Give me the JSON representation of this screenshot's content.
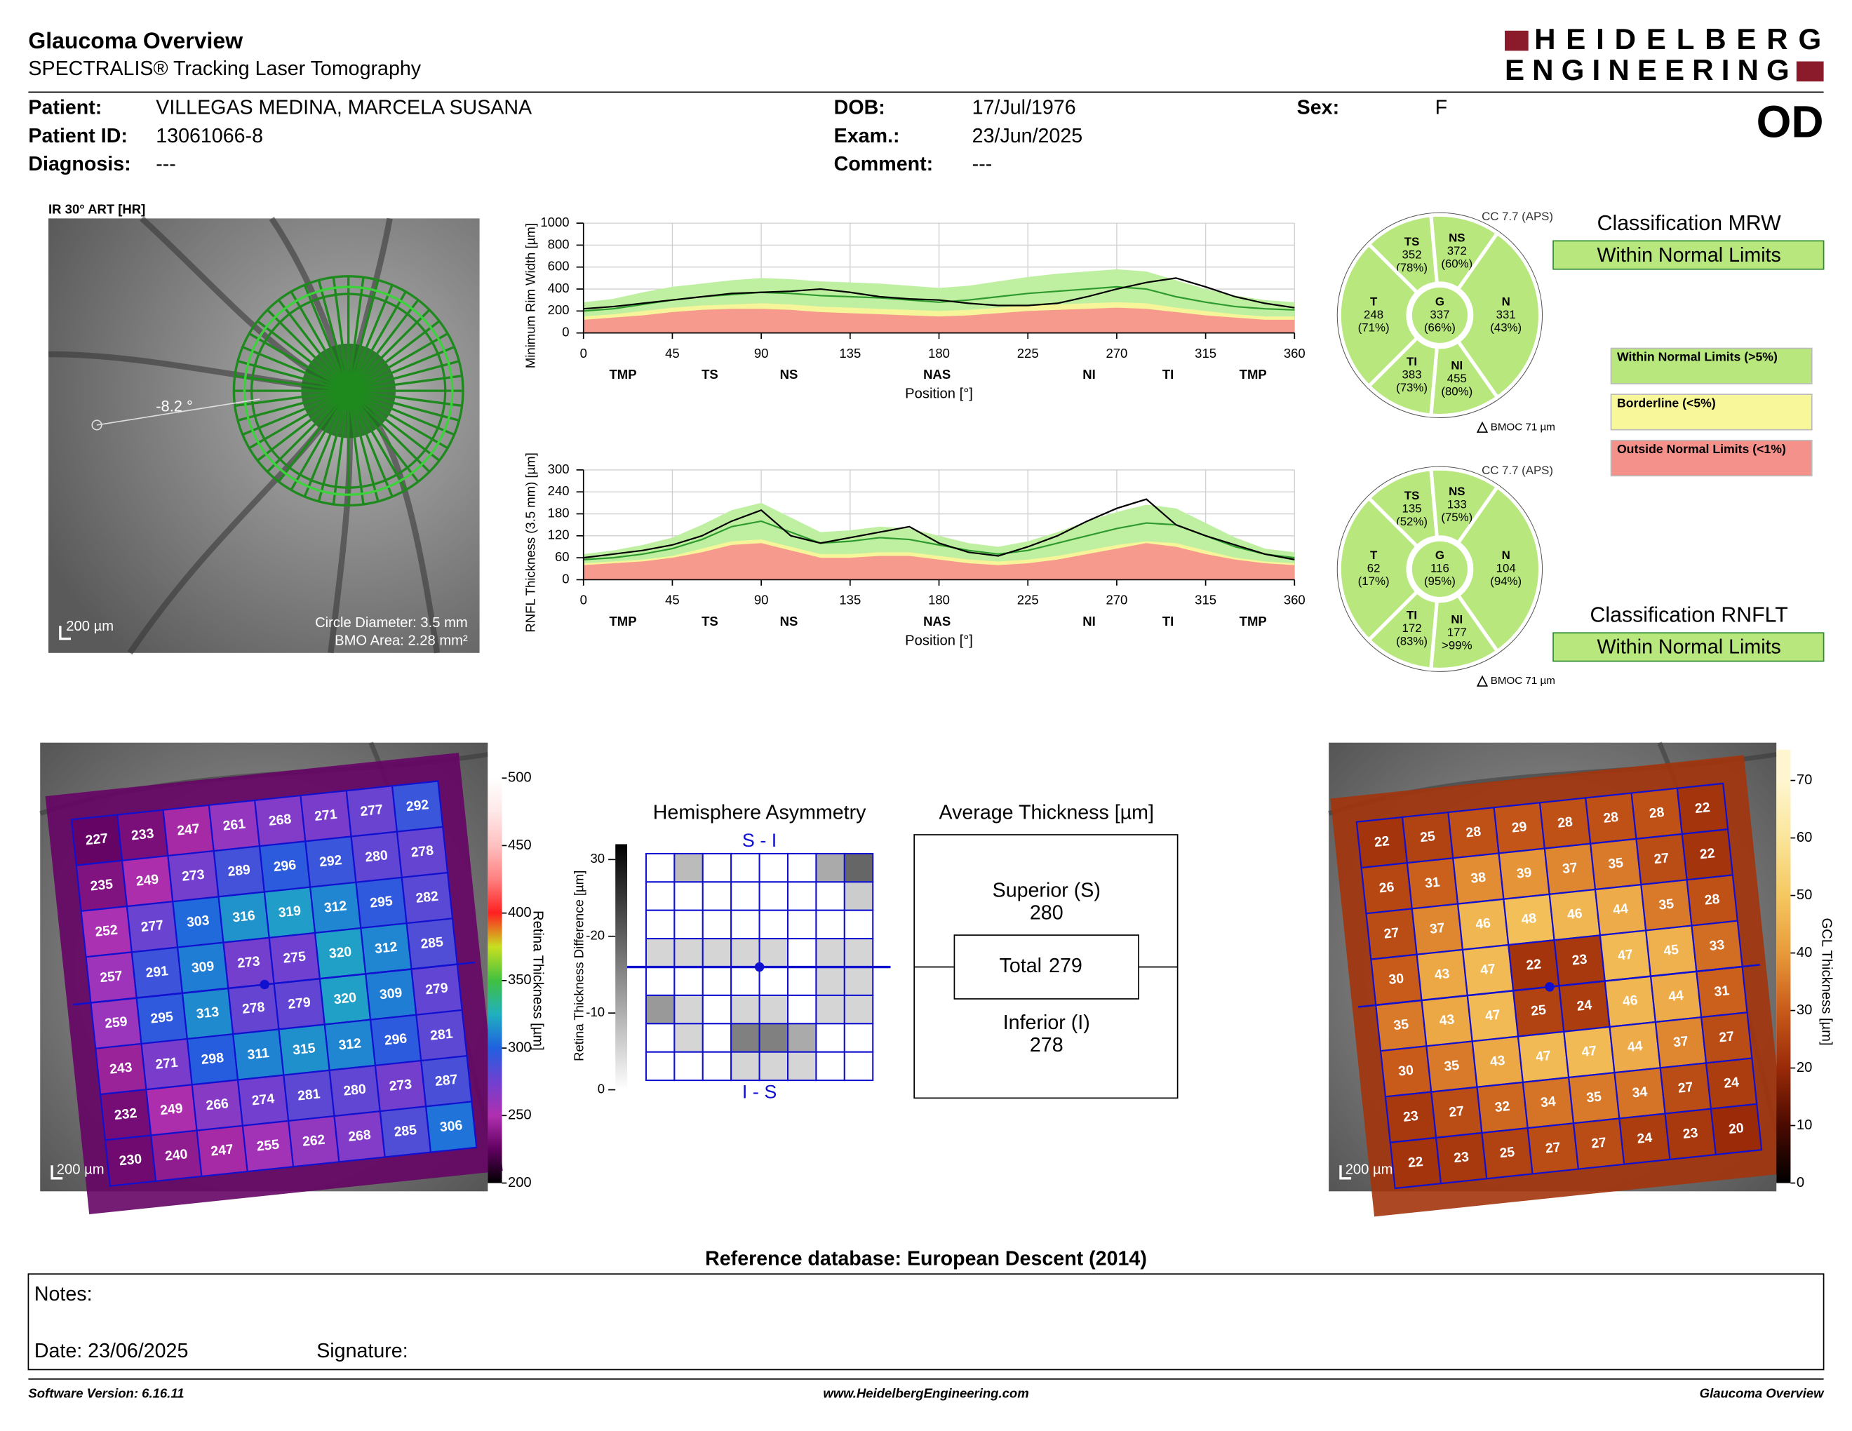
{
  "header": {
    "title": "Glaucoma Overview",
    "subtitle": "SPECTRALIS® Tracking Laser Tomography",
    "logo_line1": "HEIDELBERG",
    "logo_line2": "ENGINEERING",
    "eye": "OD"
  },
  "patient": {
    "name_label": "Patient:",
    "name": "VILLEGAS MEDINA, MARCELA SUSANA",
    "id_label": "Patient ID:",
    "id": "13061066-8",
    "diagnosis_label": "Diagnosis:",
    "diagnosis": "---",
    "dob_label": "DOB:",
    "dob": "17/Jul/1976",
    "exam_label": "Exam.:",
    "exam": "23/Jun/2025",
    "comment_label": "Comment:",
    "comment": "---",
    "sex_label": "Sex:",
    "sex": "F"
  },
  "ir_image": {
    "label": "IR 30° ART [HR]",
    "angle": "-8.2 °",
    "scale": "200 µm",
    "circle_diameter": "Circle Diameter: 3.5 mm",
    "bmo_area": "BMO Area: 2.28 mm²"
  },
  "chart_data": [
    {
      "type": "line",
      "y_label": "Minimum Rim Width [µm]",
      "x_label": "Position [°]",
      "grid": true,
      "x": [
        0,
        15,
        30,
        45,
        60,
        75,
        90,
        105,
        120,
        135,
        150,
        165,
        180,
        195,
        210,
        225,
        240,
        255,
        270,
        285,
        300,
        315,
        330,
        345,
        360
      ],
      "xlim": [
        0,
        360
      ],
      "xticks": [
        0,
        45,
        90,
        135,
        180,
        225,
        270,
        315,
        360
      ],
      "ylim": [
        0,
        1000
      ],
      "yticks": [
        0,
        200,
        400,
        600,
        800,
        1000
      ],
      "sector_labels": [
        {
          "value": 20,
          "label": "TMP"
        },
        {
          "value": 64,
          "label": "TS"
        },
        {
          "value": 104,
          "label": "NS"
        },
        {
          "value": 179,
          "label": "NAS"
        },
        {
          "value": 256,
          "label": "NI"
        },
        {
          "value": 296,
          "label": "TI"
        },
        {
          "value": 339,
          "label": "TMP"
        }
      ],
      "series": [
        {
          "style": "area",
          "color": "#bff0a2",
          "values": [
            280,
            310,
            370,
            420,
            450,
            480,
            500,
            490,
            470,
            460,
            450,
            430,
            410,
            430,
            470,
            510,
            540,
            560,
            580,
            560,
            480,
            400,
            340,
            300,
            280
          ]
        },
        {
          "style": "area",
          "color": "#f6f59a",
          "values": [
            150,
            170,
            200,
            230,
            250,
            260,
            270,
            260,
            240,
            230,
            220,
            210,
            200,
            210,
            230,
            250,
            260,
            270,
            280,
            270,
            230,
            200,
            170,
            150,
            150
          ]
        },
        {
          "style": "area",
          "color": "#f79a8e",
          "values": [
            120,
            140,
            160,
            190,
            210,
            220,
            220,
            210,
            190,
            180,
            170,
            160,
            150,
            160,
            180,
            200,
            210,
            220,
            230,
            220,
            190,
            160,
            140,
            120,
            120
          ]
        },
        {
          "style": "line",
          "color": "#2e9a2e",
          "values": [
            200,
            220,
            260,
            300,
            330,
            350,
            370,
            360,
            340,
            330,
            320,
            300,
            280,
            300,
            330,
            360,
            380,
            400,
            420,
            400,
            330,
            280,
            240,
            220,
            210
          ]
        },
        {
          "style": "line",
          "color": "#000000",
          "values": [
            220,
            240,
            270,
            300,
            330,
            360,
            370,
            380,
            400,
            370,
            330,
            310,
            300,
            270,
            250,
            250,
            270,
            330,
            400,
            460,
            500,
            420,
            330,
            270,
            230
          ]
        }
      ]
    },
    {
      "type": "line",
      "y_label": "RNFL Thickness (3.5 mm) [µm]",
      "x_label": "Position [°]",
      "grid": true,
      "x": [
        0,
        15,
        30,
        45,
        60,
        75,
        90,
        105,
        120,
        135,
        150,
        165,
        180,
        195,
        210,
        225,
        240,
        255,
        270,
        285,
        300,
        315,
        330,
        345,
        360
      ],
      "xlim": [
        0,
        360
      ],
      "xticks": [
        0,
        45,
        90,
        135,
        180,
        225,
        270,
        315,
        360
      ],
      "ylim": [
        0,
        300
      ],
      "yticks": [
        0,
        60,
        120,
        180,
        240,
        300
      ],
      "sector_labels": [
        {
          "value": 20,
          "label": "TMP"
        },
        {
          "value": 64,
          "label": "TS"
        },
        {
          "value": 104,
          "label": "NS"
        },
        {
          "value": 179,
          "label": "NAS"
        },
        {
          "value": 256,
          "label": "NI"
        },
        {
          "value": 296,
          "label": "TI"
        },
        {
          "value": 339,
          "label": "TMP"
        }
      ],
      "series": [
        {
          "style": "area",
          "color": "#bff0a2",
          "values": [
            70,
            80,
            95,
            115,
            150,
            190,
            210,
            170,
            130,
            135,
            145,
            140,
            120,
            100,
            90,
            105,
            130,
            160,
            185,
            205,
            195,
            155,
            115,
            85,
            75
          ]
        },
        {
          "style": "area",
          "color": "#f6f59a",
          "values": [
            45,
            50,
            55,
            65,
            85,
            105,
            110,
            90,
            70,
            70,
            75,
            75,
            65,
            55,
            50,
            55,
            65,
            80,
            95,
            105,
            100,
            80,
            60,
            50,
            45
          ]
        },
        {
          "style": "area",
          "color": "#f79a8e",
          "values": [
            40,
            45,
            50,
            60,
            75,
            95,
            100,
            80,
            60,
            60,
            65,
            65,
            55,
            45,
            40,
            45,
            55,
            70,
            85,
            100,
            90,
            70,
            55,
            45,
            40
          ]
        },
        {
          "style": "line",
          "color": "#2e9a2e",
          "values": [
            55,
            60,
            70,
            85,
            110,
            145,
            160,
            130,
            100,
            105,
            115,
            110,
            95,
            80,
            70,
            80,
            100,
            120,
            140,
            155,
            150,
            120,
            90,
            70,
            60
          ]
        },
        {
          "style": "line",
          "color": "#000000",
          "values": [
            60,
            70,
            80,
            95,
            120,
            160,
            190,
            120,
            100,
            115,
            130,
            145,
            100,
            75,
            65,
            90,
            120,
            160,
            195,
            220,
            150,
            120,
            95,
            70,
            55
          ]
        }
      ]
    }
  ],
  "sector_charts": [
    {
      "cc": "CC 7.7 (APS)",
      "bmoc": "BMOC 71 µm",
      "color": "#b8e77e",
      "sectors": [
        {
          "name": "TS",
          "value": 352,
          "pct": "(78%)"
        },
        {
          "name": "NS",
          "value": 372,
          "pct": "(60%)"
        },
        {
          "name": "T",
          "value": 248,
          "pct": "(71%)"
        },
        {
          "name": "G",
          "value": 337,
          "pct": "(66%)"
        },
        {
          "name": "N",
          "value": 331,
          "pct": "(43%)"
        },
        {
          "name": "TI",
          "value": 383,
          "pct": "(73%)"
        },
        {
          "name": "NI",
          "value": 455,
          "pct": "(80%)"
        }
      ]
    },
    {
      "cc": "CC 7.7 (APS)",
      "bmoc": "BMOC 71 µm",
      "color": "#b8e77e",
      "sectors": [
        {
          "name": "TS",
          "value": 135,
          "pct": "(52%)"
        },
        {
          "name": "NS",
          "value": 133,
          "pct": "(75%)"
        },
        {
          "name": "T",
          "value": 62,
          "pct": "(17%)"
        },
        {
          "name": "G",
          "value": 116,
          "pct": "(95%)"
        },
        {
          "name": "N",
          "value": 104,
          "pct": "(94%)"
        },
        {
          "name": "TI",
          "value": 172,
          "pct": "(83%)"
        },
        {
          "name": "NI",
          "value": 177,
          "pct": ">99%"
        }
      ]
    }
  ],
  "classification": {
    "mrw": {
      "title": "Classification MRW",
      "result": "Within Normal Limits",
      "color": "#b8e77e"
    },
    "rnflt": {
      "title": "Classification RNFLT",
      "result": "Within Normal Limits",
      "color": "#b8e77e"
    },
    "legend": [
      {
        "label": "Within Normal Limits (>5%)",
        "color": "#b8e77e"
      },
      {
        "label": "Borderline (<5%)",
        "color": "#f8f79a"
      },
      {
        "label": "Outside Normal Limits (<1%)",
        "color": "#f4918a"
      }
    ]
  },
  "maps": [
    {
      "scale": "200 µm",
      "colorbar": {
        "label": "Retina  Thickness [µm]",
        "lim": [
          200,
          500
        ],
        "ticks": [
          200,
          250,
          300,
          350,
          400,
          450,
          500
        ]
      },
      "colormap": [
        "#000000",
        "#600060",
        "#b030b0",
        "#7040d0",
        "#2060e0",
        "#20b0c0",
        "#40c040",
        "#c8e020",
        "#ff2020",
        "#ff8080",
        "#ffc0c0",
        "#ffe8e8",
        "#ffffff"
      ],
      "values": [
        [
          227,
          233,
          247,
          261,
          268,
          271,
          277,
          292
        ],
        [
          235,
          249,
          273,
          289,
          296,
          292,
          280,
          278
        ],
        [
          252,
          277,
          303,
          316,
          319,
          312,
          295,
          282
        ],
        [
          257,
          291,
          309,
          273,
          275,
          320,
          312,
          285
        ],
        [
          259,
          295,
          313,
          278,
          279,
          320,
          309,
          279
        ],
        [
          243,
          271,
          298,
          311,
          315,
          312,
          296,
          281
        ],
        [
          232,
          249,
          266,
          274,
          281,
          280,
          273,
          287
        ],
        [
          230,
          240,
          247,
          255,
          262,
          268,
          285,
          306
        ]
      ]
    },
    {
      "scale": "200 µm",
      "colorbar": {
        "label": "GCL  Thickness [µm]",
        "lim": [
          0,
          70
        ],
        "ticks": [
          0,
          10,
          20,
          30,
          40,
          50,
          60,
          70
        ]
      },
      "colormap": [
        "#000000",
        "#4a0a00",
        "#9a2a08",
        "#c85a1a",
        "#e89a3a",
        "#f5c860",
        "#fae59a",
        "#fff6d0"
      ],
      "values": [
        [
          22,
          25,
          28,
          29,
          28,
          28,
          28,
          22
        ],
        [
          26,
          31,
          38,
          39,
          37,
          35,
          27,
          22
        ],
        [
          27,
          37,
          46,
          48,
          46,
          44,
          35,
          28
        ],
        [
          30,
          43,
          47,
          22,
          23,
          47,
          45,
          33
        ],
        [
          35,
          43,
          47,
          25,
          24,
          46,
          44,
          31
        ],
        [
          30,
          35,
          43,
          47,
          47,
          44,
          37,
          27
        ],
        [
          23,
          27,
          32,
          34,
          35,
          34,
          27,
          24
        ],
        [
          22,
          23,
          25,
          27,
          27,
          24,
          23,
          20
        ]
      ]
    }
  ],
  "hemisphere_asymmetry": {
    "title": "Hemisphere Asymmetry",
    "top_label": "S - I",
    "bottom_label": "I - S",
    "y_label": "Retina Thickness Difference [µm]",
    "ylim": [
      0,
      30
    ],
    "yticks": [
      0,
      {
        "value": 10,
        "label": "-10"
      },
      {
        "value": 20,
        "label": "-20"
      },
      30
    ],
    "cells": [
      [
        0,
        8,
        0,
        0,
        0,
        0,
        10,
        18
      ],
      [
        0,
        0,
        0,
        0,
        0,
        0,
        0,
        6
      ],
      [
        0,
        0,
        0,
        0,
        0,
        0,
        0,
        0
      ],
      [
        5,
        5,
        5,
        5,
        5,
        0,
        5,
        5
      ],
      [
        0,
        0,
        0,
        0,
        0,
        0,
        5,
        5
      ],
      [
        12,
        5,
        0,
        5,
        5,
        0,
        5,
        5
      ],
      [
        0,
        5,
        0,
        15,
        15,
        10,
        0,
        0
      ],
      [
        0,
        0,
        0,
        5,
        5,
        5,
        0,
        0
      ]
    ]
  },
  "average_thickness": {
    "title": "Average Thickness [µm]",
    "superior_label": "Superior (S)",
    "superior": 280,
    "total_label": "Total",
    "total": 279,
    "inferior_label": "Inferior (I)",
    "inferior": 278
  },
  "footer": {
    "reference": "Reference database: European Descent (2014)",
    "notes": "Notes:",
    "date": "Date: 23/06/2025",
    "signature": "Signature:",
    "software": "Software Version: 6.16.11",
    "website": "www.HeidelbergEngineering.com",
    "report": "Glaucoma Overview"
  }
}
